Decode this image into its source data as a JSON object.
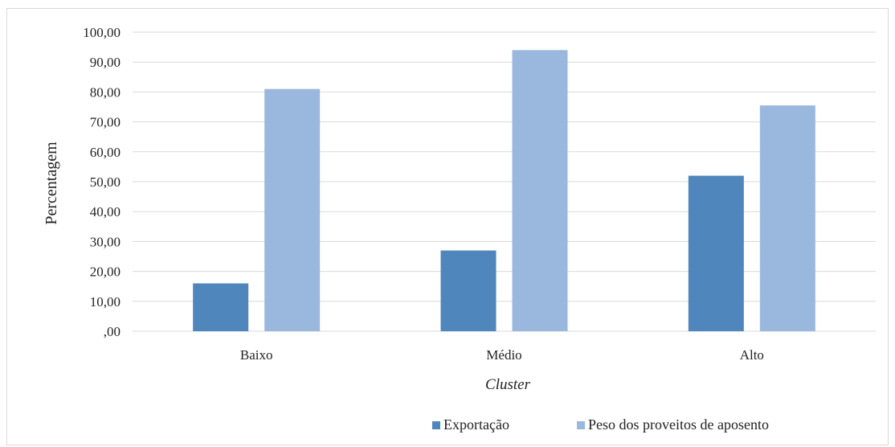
{
  "chart_data": {
    "type": "bar",
    "categories": [
      "Baixo",
      "Médio",
      "Alto"
    ],
    "series": [
      {
        "name": "Exportação",
        "values": [
          16.0,
          27.0,
          52.0
        ],
        "color": "#4f86bb"
      },
      {
        "name": "Peso dos proveitos de aposento",
        "values": [
          81.0,
          94.0,
          75.5
        ],
        "color": "#9ab8de"
      }
    ],
    "yticks": [
      ",00",
      "10,00",
      "20,00",
      "30,00",
      "40,00",
      "50,00",
      "60,00",
      "70,00",
      "80,00",
      "90,00",
      "100,00"
    ],
    "ylim": [
      0,
      100
    ],
    "ylabel": "Percentagem",
    "xlabel": "Cluster",
    "legend_position": "bottom-right",
    "grid": true
  }
}
